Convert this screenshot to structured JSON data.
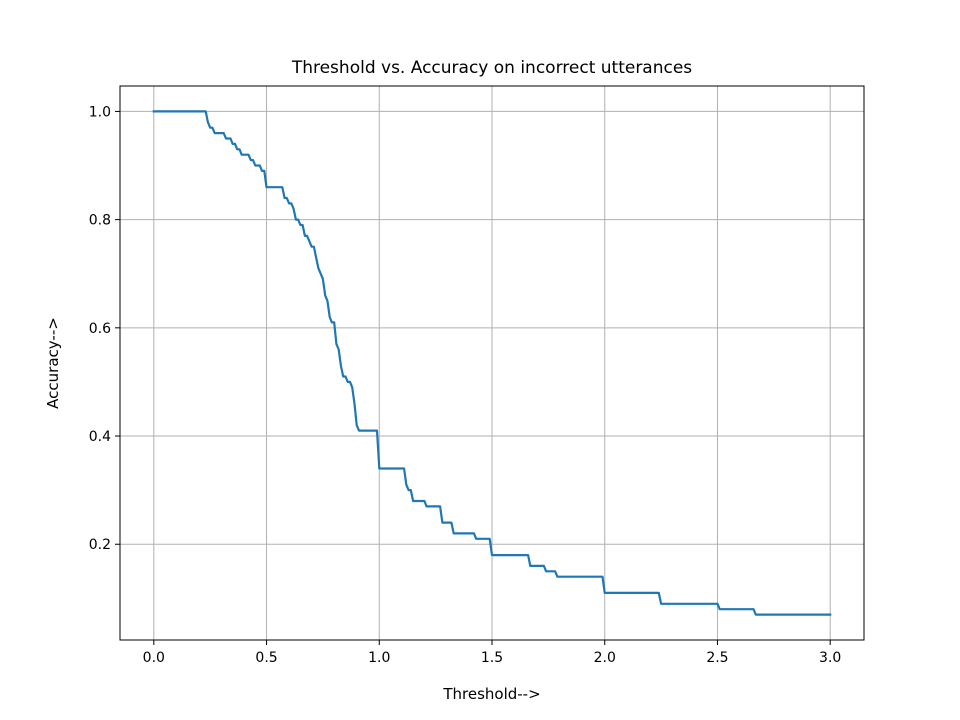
{
  "chart_data": {
    "type": "line",
    "title": "Threshold vs. Accuracy on incorrect utterances",
    "xlabel": "Threshold-->",
    "ylabel": "Accuracy-->",
    "xlim": [
      -0.15,
      3.15
    ],
    "ylim": [
      0.023,
      1.047
    ],
    "xticks": [
      0.0,
      0.5,
      1.0,
      1.5,
      2.0,
      2.5,
      3.0
    ],
    "xtick_labels": [
      "0.0",
      "0.5",
      "1.0",
      "1.5",
      "2.0",
      "2.5",
      "3.0"
    ],
    "yticks": [
      0.2,
      0.4,
      0.6,
      0.8,
      1.0
    ],
    "ytick_labels": [
      "0.2",
      "0.4",
      "0.6",
      "0.8",
      "1.0"
    ],
    "grid": true,
    "series": [
      {
        "color": "#1f77b4",
        "x": [
          0.0,
          0.23,
          0.24,
          0.25,
          0.26,
          0.27,
          0.31,
          0.32,
          0.34,
          0.35,
          0.36,
          0.37,
          0.38,
          0.39,
          0.42,
          0.43,
          0.44,
          0.45,
          0.47,
          0.48,
          0.49,
          0.5,
          0.57,
          0.58,
          0.59,
          0.6,
          0.61,
          0.62,
          0.63,
          0.64,
          0.65,
          0.66,
          0.67,
          0.68,
          0.69,
          0.7,
          0.71,
          0.72,
          0.73,
          0.74,
          0.75,
          0.76,
          0.77,
          0.78,
          0.79,
          0.8,
          0.81,
          0.82,
          0.83,
          0.84,
          0.85,
          0.86,
          0.87,
          0.88,
          0.89,
          0.9,
          0.91,
          0.92,
          0.99,
          1.0,
          1.11,
          1.12,
          1.13,
          1.14,
          1.15,
          1.16,
          1.2,
          1.21,
          1.27,
          1.28,
          1.32,
          1.33,
          1.42,
          1.43,
          1.49,
          1.5,
          1.66,
          1.67,
          1.73,
          1.74,
          1.78,
          1.79,
          1.99,
          2.0,
          2.24,
          2.25,
          2.5,
          2.51,
          2.66,
          2.67,
          3.0
        ],
        "y": [
          1.0,
          1.0,
          0.98,
          0.97,
          0.97,
          0.96,
          0.96,
          0.95,
          0.95,
          0.94,
          0.94,
          0.93,
          0.93,
          0.92,
          0.92,
          0.91,
          0.91,
          0.9,
          0.9,
          0.89,
          0.89,
          0.86,
          0.86,
          0.84,
          0.84,
          0.83,
          0.83,
          0.82,
          0.8,
          0.8,
          0.79,
          0.79,
          0.77,
          0.77,
          0.76,
          0.75,
          0.75,
          0.73,
          0.71,
          0.7,
          0.69,
          0.66,
          0.65,
          0.62,
          0.61,
          0.61,
          0.57,
          0.56,
          0.53,
          0.51,
          0.51,
          0.5,
          0.5,
          0.49,
          0.46,
          0.42,
          0.41,
          0.41,
          0.41,
          0.34,
          0.34,
          0.31,
          0.3,
          0.3,
          0.28,
          0.28,
          0.28,
          0.27,
          0.27,
          0.24,
          0.24,
          0.22,
          0.22,
          0.21,
          0.21,
          0.18,
          0.18,
          0.16,
          0.16,
          0.15,
          0.15,
          0.14,
          0.14,
          0.11,
          0.11,
          0.09,
          0.09,
          0.08,
          0.08,
          0.07,
          0.07
        ]
      }
    ]
  }
}
